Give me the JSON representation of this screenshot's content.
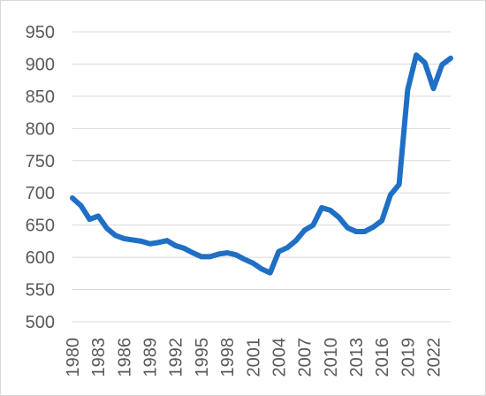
{
  "chart_data": {
    "type": "line",
    "title": "",
    "xlabel": "",
    "ylabel": "",
    "x": [
      1980,
      1981,
      1982,
      1983,
      1984,
      1985,
      1986,
      1987,
      1988,
      1989,
      1990,
      1991,
      1992,
      1993,
      1994,
      1995,
      1996,
      1997,
      1998,
      1999,
      2000,
      2001,
      2002,
      2003,
      2004,
      2005,
      2006,
      2007,
      2008,
      2009,
      2010,
      2011,
      2012,
      2013,
      2014,
      2015,
      2016,
      2017,
      2018,
      2019,
      2020,
      2021,
      2022,
      2023,
      2024
    ],
    "series": [
      {
        "name": "",
        "color": "#1f6fc5",
        "values": [
          692,
          680,
          659,
          664,
          645,
          634,
          629,
          627,
          625,
          621,
          623,
          626,
          618,
          614,
          607,
          601,
          601,
          605,
          607,
          604,
          597,
          591,
          582,
          576,
          609,
          615,
          626,
          642,
          650,
          677,
          673,
          662,
          646,
          640,
          640,
          647,
          657,
          697,
          713,
          860,
          914,
          902,
          862,
          899,
          909
        ]
      }
    ],
    "y_ticks": [
      "500",
      "550",
      "600",
      "650",
      "700",
      "750",
      "800",
      "850",
      "900",
      "950"
    ],
    "x_ticks": [
      "1980",
      "1983",
      "1986",
      "1989",
      "1992",
      "1995",
      "1998",
      "2001",
      "2004",
      "2007",
      "2010",
      "2013",
      "2016",
      "2019",
      "2022"
    ],
    "ylim": [
      500,
      950
    ],
    "xlim": [
      1980,
      2024
    ],
    "grid": "horizontal",
    "legend": "none"
  }
}
